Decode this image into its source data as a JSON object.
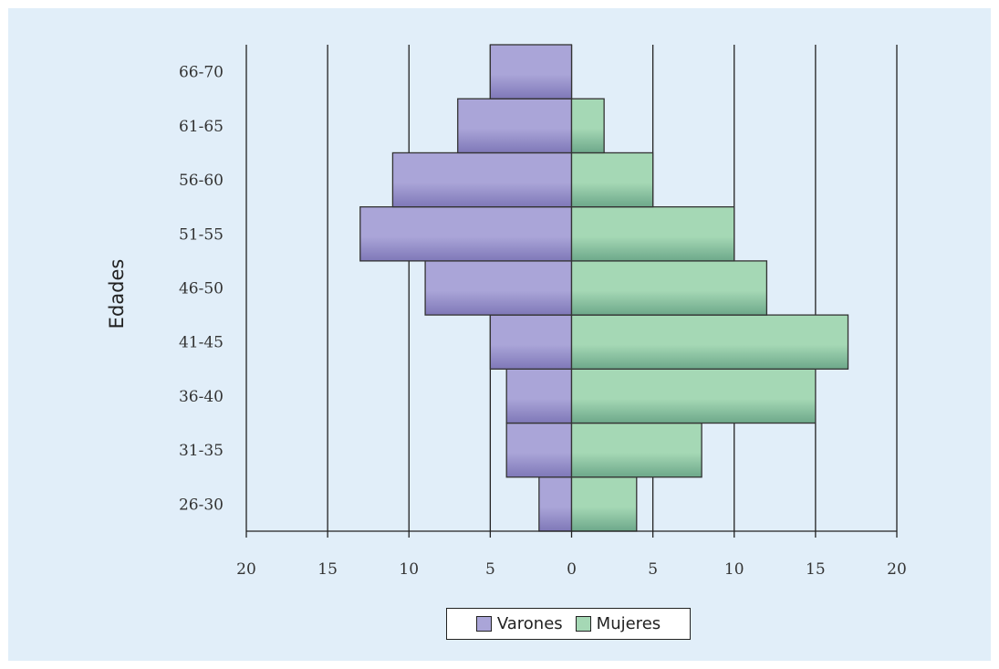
{
  "chart_data": {
    "type": "bar",
    "orientation": "horizontal",
    "subtype": "population-pyramid",
    "ylabel": "Edades",
    "categories": [
      "26-30",
      "31-35",
      "36-40",
      "41-45",
      "46-50",
      "51-55",
      "56-60",
      "61-65",
      "66-70"
    ],
    "series": [
      {
        "name": "Varones",
        "side": "left",
        "values": [
          2,
          4,
          4,
          5,
          9,
          13,
          11,
          7,
          5
        ],
        "color": "#aaa5d8",
        "color_dark": "#7f78b8"
      },
      {
        "name": "Mujeres",
        "side": "right",
        "values": [
          4,
          8,
          15,
          17,
          12,
          10,
          5,
          2,
          0
        ],
        "color": "#a5d8b5",
        "color_dark": "#6da88a"
      }
    ],
    "xlim": [
      -20,
      20
    ],
    "x_ticks": [
      -20,
      -15,
      -10,
      -5,
      0,
      5,
      10,
      15,
      20
    ],
    "x_tick_labels": [
      "20",
      "15",
      "10",
      "5",
      "0",
      "5",
      "10",
      "15",
      "20"
    ],
    "grid": "vertical",
    "legend_position": "bottom-center",
    "colors": {
      "background": "#e1eef9",
      "grid": "#222222",
      "bar_border": "#333333"
    }
  }
}
